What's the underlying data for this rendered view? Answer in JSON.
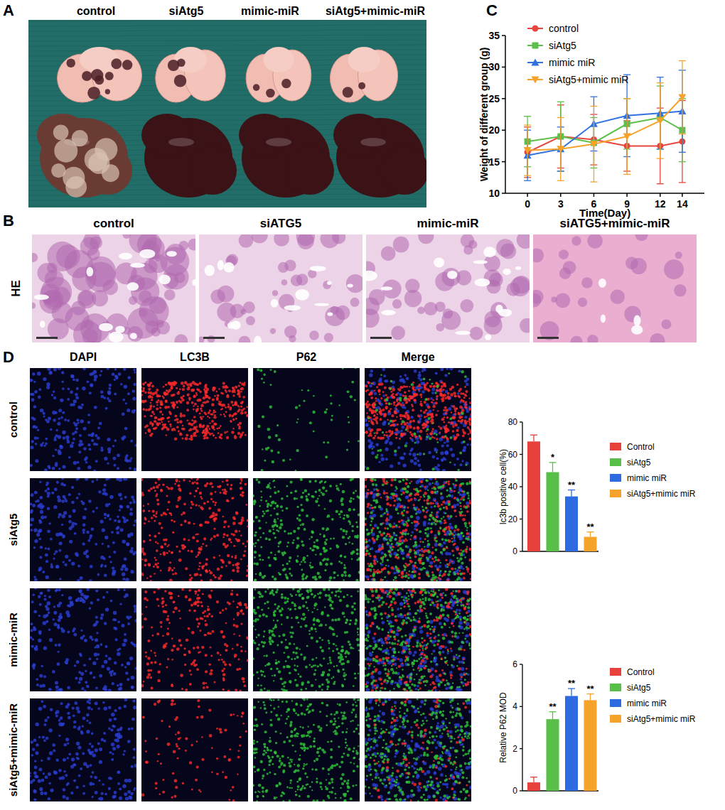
{
  "panels": {
    "A": {
      "letter": "A",
      "labels": [
        "control",
        "siAtg5",
        "mimic-miR",
        "siAtg5+mimic-miR"
      ]
    },
    "B": {
      "letter": "B",
      "row_label": "HE",
      "titles": [
        "control",
        "siATG5",
        "mimic-miR",
        "siATG5+mimic-miR"
      ]
    },
    "C": {
      "letter": "C"
    },
    "D": {
      "letter": "D",
      "column_titles": [
        "DAPI",
        "LC3B",
        "P62",
        "Merge"
      ],
      "row_labels": [
        "control",
        "siAtg5",
        "mimic-miR",
        "siAtg5+mimic-miR"
      ]
    }
  },
  "chart_data": [
    {
      "type": "line",
      "x_label": "Time(Day)",
      "y_label": "Weight of different group  (g)",
      "x": [
        0,
        3,
        6,
        9,
        12,
        14
      ],
      "xlim": [
        -2,
        16
      ],
      "xticks": [
        0,
        3,
        6,
        9,
        12,
        14
      ],
      "ylim": [
        10,
        35
      ],
      "yticks": [
        10,
        15,
        20,
        25,
        30,
        35
      ],
      "legend": "top",
      "series": [
        {
          "name": "control",
          "color": "#e8453c",
          "marker": "circle",
          "values": [
            16.5,
            19,
            18.5,
            17.5,
            17.5,
            18.2
          ],
          "errors": [
            4,
            5,
            4,
            4,
            6,
            6.5
          ]
        },
        {
          "name": "siAtg5",
          "color": "#5cc04a",
          "marker": "square",
          "values": [
            18.2,
            19,
            18,
            21,
            22,
            20
          ],
          "errors": [
            4,
            5.5,
            4,
            4,
            5,
            5
          ]
        },
        {
          "name": "mimic miR",
          "color": "#2f72e0",
          "marker": "triangle-up",
          "values": [
            16,
            17,
            21,
            22.3,
            22.7,
            23
          ],
          "errors": [
            4,
            3.5,
            4.3,
            6.5,
            5.7,
            6.5
          ]
        },
        {
          "name": "siAtg5+mimic miR",
          "color": "#f5a32a",
          "marker": "triangle-down",
          "values": [
            16.8,
            17,
            17.8,
            19,
            21.5,
            25.2
          ],
          "errors": [
            4,
            5,
            6,
            6,
            6,
            5.8
          ]
        }
      ]
    },
    {
      "type": "bar",
      "y_label": "lc3b positive cell(%)",
      "categories": [
        "Control",
        "siAtg5",
        "mimic miR",
        "siAtg5+mimic miR"
      ],
      "values": [
        68,
        49,
        34,
        9
      ],
      "errors": [
        4,
        6,
        4,
        3
      ],
      "colors": [
        "#e8403a",
        "#58c048",
        "#2e6be0",
        "#f5a32a"
      ],
      "significance": [
        null,
        "*",
        "**",
        "**"
      ],
      "ylim": [
        0,
        80
      ],
      "yticks": [
        0,
        20,
        40,
        60,
        80
      ],
      "legend": "right",
      "tick_labels": "y"
    },
    {
      "type": "bar",
      "y_label": "Relative P62 MOD",
      "categories": [
        "Control",
        "siAtg5",
        "mimic miR",
        "siAtg5+mimic miR"
      ],
      "values": [
        0.4,
        3.4,
        4.5,
        4.3
      ],
      "errors": [
        0.25,
        0.35,
        0.35,
        0.3
      ],
      "colors": [
        "#e8403a",
        "#58c048",
        "#2e6be0",
        "#f5a32a"
      ],
      "significance": [
        null,
        "**",
        "**",
        "**"
      ],
      "ylim": [
        0,
        6
      ],
      "yticks": [
        0,
        2,
        4,
        6
      ],
      "legend": "right",
      "tick_labels": "y"
    }
  ]
}
